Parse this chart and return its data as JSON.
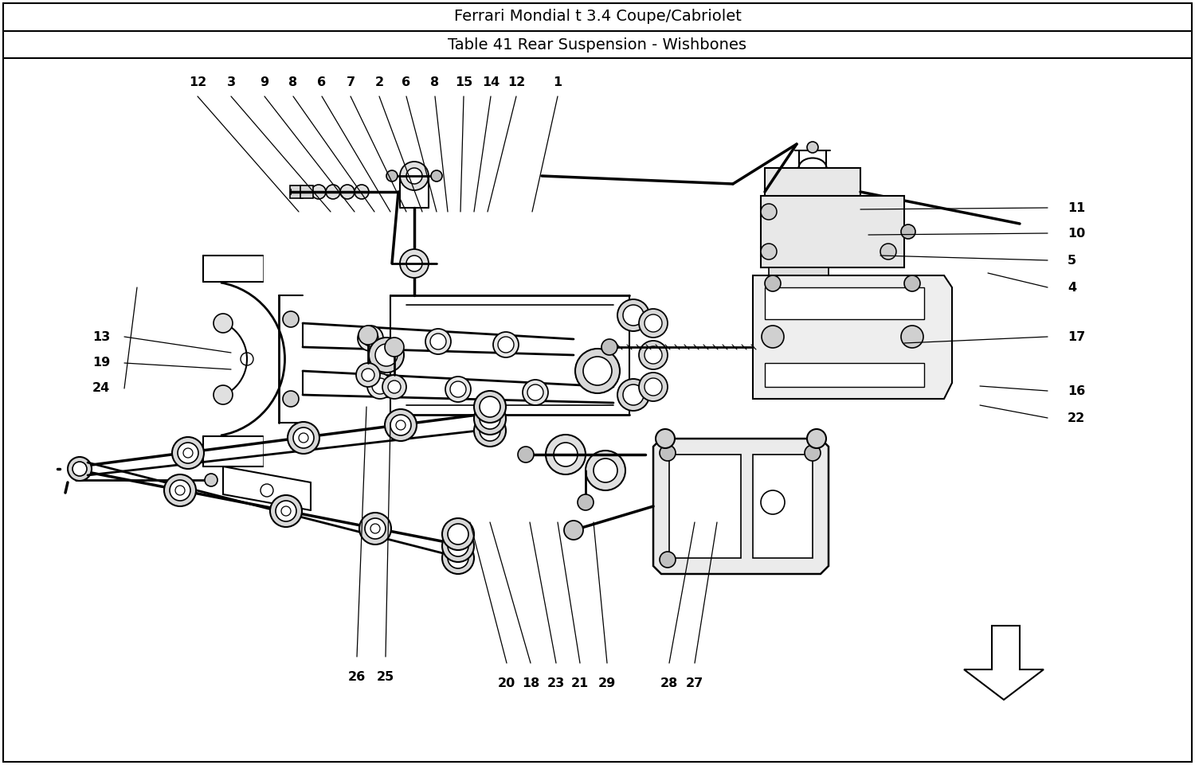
{
  "title1": "Ferrari Mondial t 3.4 Coupe/Cabriolet",
  "title2": "Table 41 Rear Suspension - Wishbones",
  "bg_color": "#ffffff",
  "border_color": "#000000",
  "text_color": "#000000",
  "title1_fontsize": 14,
  "title2_fontsize": 14,
  "fig_width": 15.0,
  "fig_height": 9.61,
  "top_labels": [
    [
      12,
      248,
      840,
      375,
      695
    ],
    [
      3,
      290,
      840,
      415,
      695
    ],
    [
      9,
      332,
      840,
      445,
      695
    ],
    [
      8,
      368,
      840,
      470,
      695
    ],
    [
      6,
      404,
      840,
      490,
      695
    ],
    [
      7,
      440,
      840,
      510,
      695
    ],
    [
      2,
      476,
      840,
      530,
      695
    ],
    [
      6,
      510,
      840,
      548,
      695
    ],
    [
      8,
      546,
      840,
      562,
      695
    ],
    [
      15,
      582,
      840,
      578,
      695
    ],
    [
      14,
      616,
      840,
      595,
      695
    ],
    [
      12,
      648,
      840,
      612,
      695
    ],
    [
      1,
      700,
      840,
      668,
      695
    ]
  ],
  "right_labels": [
    [
      11,
      1340,
      700,
      1080,
      698
    ],
    [
      10,
      1340,
      668,
      1090,
      666
    ],
    [
      5,
      1340,
      634,
      1105,
      640
    ],
    [
      4,
      1340,
      600,
      1240,
      618
    ],
    [
      17,
      1340,
      538,
      1135,
      530
    ],
    [
      16,
      1340,
      470,
      1230,
      476
    ],
    [
      22,
      1340,
      436,
      1230,
      452
    ]
  ],
  "left_labels": [
    [
      13,
      138,
      538,
      290,
      518
    ],
    [
      19,
      138,
      505,
      290,
      497
    ],
    [
      24,
      138,
      473,
      172,
      600
    ]
  ],
  "bottom_labels": [
    [
      26,
      448,
      118,
      460,
      450
    ],
    [
      25,
      484,
      118,
      490,
      430
    ],
    [
      20,
      636,
      110,
      590,
      305
    ],
    [
      18,
      666,
      110,
      615,
      305
    ],
    [
      23,
      698,
      110,
      665,
      305
    ],
    [
      21,
      728,
      110,
      700,
      305
    ],
    [
      29,
      762,
      110,
      745,
      305
    ],
    [
      28,
      840,
      110,
      872,
      305
    ],
    [
      27,
      872,
      110,
      900,
      305
    ]
  ]
}
